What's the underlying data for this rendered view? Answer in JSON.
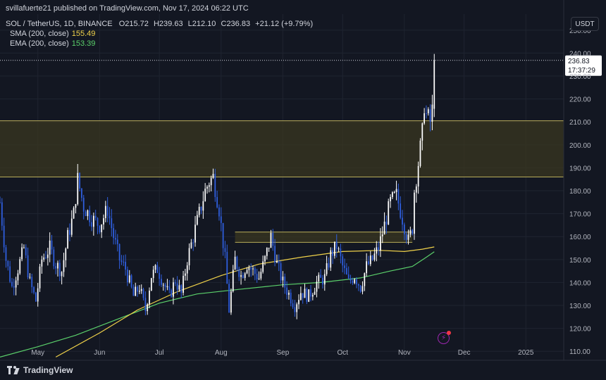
{
  "header": {
    "published": "svillafuerte21 published on TradingView.com, Nov 17, 2024 06:22 UTC"
  },
  "symbol_line": {
    "symbol": "SOL / TetherUS, 1D, BINANCE",
    "open_label": "O",
    "open": "215.72",
    "high_label": "H",
    "high": "239.63",
    "low_label": "L",
    "low": "212.10",
    "close_label": "C",
    "close": "236.83",
    "change": "+21.12 (+9.79%)"
  },
  "legend": [
    {
      "name": "SMA (200, close)",
      "value": "155.49",
      "color": "#f0d24a"
    },
    {
      "name": "EMA (200, close)",
      "value": "153.39",
      "color": "#5bd16b"
    }
  ],
  "price_axis": {
    "unit": "USDT",
    "current_price": "236.83",
    "countdown": "17:37:29"
  },
  "branding": {
    "logo": "tradingview-logo-icon",
    "name": "TradingView"
  },
  "colors": {
    "background": "#131722",
    "up": "#ffffff",
    "down": "#2f5fe0",
    "zone_fill": "#3a3720",
    "zone_line": "#b9ad5a",
    "grid": "#1f2430"
  },
  "chart_data": {
    "type": "candlestick",
    "ylim": [
      107,
      257
    ],
    "y_ticks": [
      110,
      120,
      130,
      140,
      150,
      160,
      170,
      180,
      190,
      200,
      210,
      220,
      230,
      240,
      250
    ],
    "x_ticks": [
      "May",
      "Jun",
      "Jul",
      "Aug",
      "Sep",
      "Oct",
      "Nov",
      "Dec",
      "2025"
    ],
    "x_tick_dates": [
      "2024-05-01",
      "2024-06-01",
      "2024-07-01",
      "2024-08-01",
      "2024-09-01",
      "2024-10-01",
      "2024-11-01",
      "2024-12-01",
      "2025-01-01"
    ],
    "x_range": [
      "2024-04-12",
      "2025-01-20"
    ],
    "grid": true,
    "zones": [
      {
        "from": 186,
        "to": 210.5
      },
      {
        "from": 157.5,
        "to": 162
      }
    ],
    "close_path": [
      [
        "2024-04-12",
        175
      ],
      [
        "2024-04-15",
        150
      ],
      [
        "2024-04-18",
        138
      ],
      [
        "2024-04-21",
        146
      ],
      [
        "2024-04-24",
        155
      ],
      [
        "2024-04-27",
        140
      ],
      [
        "2024-04-30",
        132
      ],
      [
        "2024-05-03",
        150
      ],
      [
        "2024-05-07",
        155
      ],
      [
        "2024-05-10",
        148
      ],
      [
        "2024-05-13",
        145
      ],
      [
        "2024-05-16",
        160
      ],
      [
        "2024-05-19",
        170
      ],
      [
        "2024-05-21",
        185
      ],
      [
        "2024-05-24",
        173
      ],
      [
        "2024-05-28",
        168
      ],
      [
        "2024-06-01",
        165
      ],
      [
        "2024-06-05",
        172
      ],
      [
        "2024-06-08",
        160
      ],
      [
        "2024-06-11",
        150
      ],
      [
        "2024-06-14",
        146
      ],
      [
        "2024-06-18",
        134
      ],
      [
        "2024-06-21",
        138
      ],
      [
        "2024-06-24",
        128
      ],
      [
        "2024-06-27",
        143
      ],
      [
        "2024-06-30",
        146
      ],
      [
        "2024-07-03",
        140
      ],
      [
        "2024-07-06",
        134
      ],
      [
        "2024-07-09",
        141
      ],
      [
        "2024-07-12",
        135
      ],
      [
        "2024-07-15",
        150
      ],
      [
        "2024-07-18",
        160
      ],
      [
        "2024-07-21",
        170
      ],
      [
        "2024-07-24",
        180
      ],
      [
        "2024-07-26",
        184
      ],
      [
        "2024-07-28",
        186
      ],
      [
        "2024-07-31",
        172
      ],
      [
        "2024-08-03",
        150
      ],
      [
        "2024-08-05",
        128
      ],
      [
        "2024-08-08",
        150
      ],
      [
        "2024-08-11",
        143
      ],
      [
        "2024-08-14",
        148
      ],
      [
        "2024-08-17",
        145
      ],
      [
        "2024-08-20",
        142
      ],
      [
        "2024-08-23",
        150
      ],
      [
        "2024-08-26",
        160
      ],
      [
        "2024-08-29",
        148
      ],
      [
        "2024-09-01",
        140
      ],
      [
        "2024-09-04",
        135
      ],
      [
        "2024-09-07",
        130
      ],
      [
        "2024-09-10",
        136
      ],
      [
        "2024-09-14",
        134
      ],
      [
        "2024-09-18",
        140
      ],
      [
        "2024-09-22",
        142
      ],
      [
        "2024-09-25",
        152
      ],
      [
        "2024-09-28",
        156
      ],
      [
        "2024-10-01",
        147
      ],
      [
        "2024-10-04",
        140
      ],
      [
        "2024-10-07",
        143
      ],
      [
        "2024-10-10",
        138
      ],
      [
        "2024-10-13",
        147
      ],
      [
        "2024-10-16",
        150
      ],
      [
        "2024-10-19",
        155
      ],
      [
        "2024-10-22",
        165
      ],
      [
        "2024-10-25",
        175
      ],
      [
        "2024-10-28",
        178
      ],
      [
        "2024-10-31",
        168
      ],
      [
        "2024-11-03",
        158
      ],
      [
        "2024-11-05",
        164
      ],
      [
        "2024-11-06",
        180
      ],
      [
        "2024-11-08",
        192
      ],
      [
        "2024-11-10",
        205
      ],
      [
        "2024-11-11",
        218
      ],
      [
        "2024-11-12",
        213
      ],
      [
        "2024-11-14",
        210
      ],
      [
        "2024-11-15",
        215
      ],
      [
        "2024-11-16",
        237
      ]
    ],
    "sma_200": [
      [
        "2024-05-10",
        107.5
      ],
      [
        "2024-06-01",
        118
      ],
      [
        "2024-06-20",
        128
      ],
      [
        "2024-07-10",
        136
      ],
      [
        "2024-08-01",
        143
      ],
      [
        "2024-08-20",
        148
      ],
      [
        "2024-09-10",
        151
      ],
      [
        "2024-10-01",
        153.5
      ],
      [
        "2024-10-20",
        154
      ],
      [
        "2024-11-01",
        153.5
      ],
      [
        "2024-11-10",
        154.5
      ],
      [
        "2024-11-16",
        155.5
      ]
    ],
    "ema_200": [
      [
        "2024-04-12",
        107.5
      ],
      [
        "2024-05-01",
        112
      ],
      [
        "2024-05-20",
        117
      ],
      [
        "2024-06-10",
        124
      ],
      [
        "2024-07-01",
        131
      ],
      [
        "2024-07-20",
        135
      ],
      [
        "2024-08-10",
        137
      ],
      [
        "2024-09-01",
        139
      ],
      [
        "2024-09-20",
        140
      ],
      [
        "2024-10-10",
        142
      ],
      [
        "2024-10-25",
        145
      ],
      [
        "2024-11-05",
        147
      ],
      [
        "2024-11-12",
        151
      ],
      [
        "2024-11-16",
        153.4
      ]
    ]
  }
}
